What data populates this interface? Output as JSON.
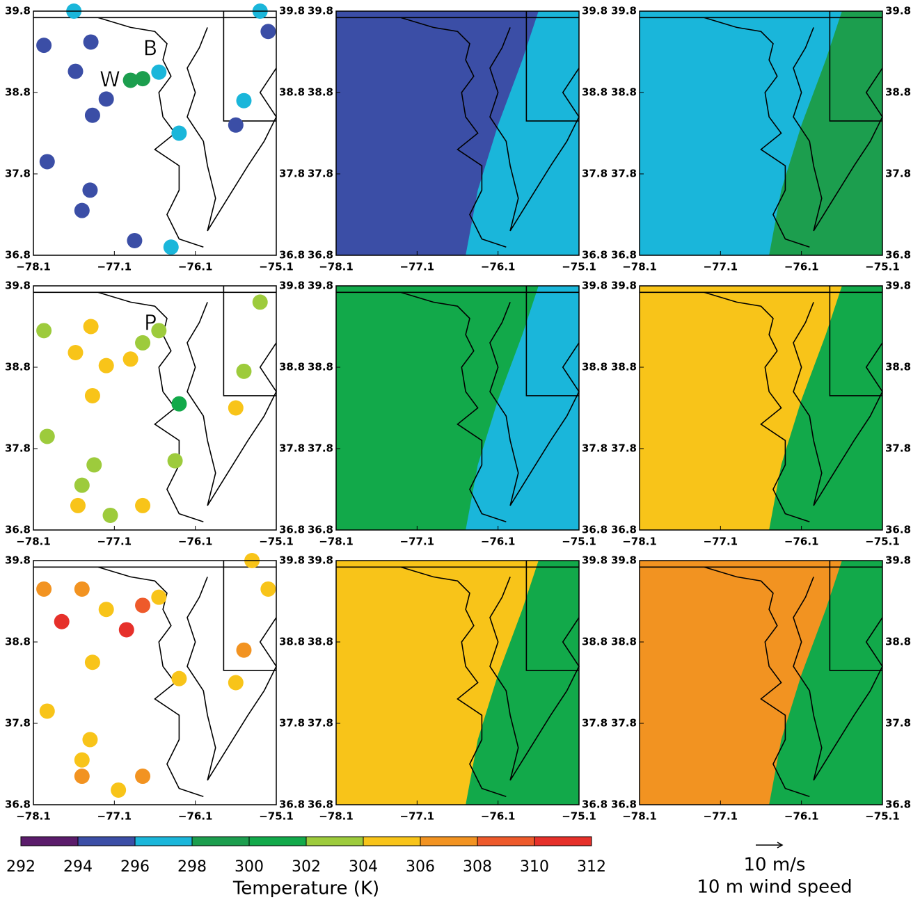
{
  "panels": [
    {
      "kind": "obs",
      "labels": [
        "W",
        "B"
      ],
      "stations": [
        [
          -77.97,
          39.38,
          295
        ],
        [
          -77.39,
          39.42,
          295
        ],
        [
          -77.58,
          39.06,
          295
        ],
        [
          -77.2,
          38.72,
          295
        ],
        [
          -77.37,
          38.52,
          295
        ],
        [
          -77.93,
          37.95,
          295
        ],
        [
          -77.4,
          37.6,
          295
        ],
        [
          -77.5,
          37.35,
          295
        ],
        [
          -76.75,
          38.97,
          299
        ],
        [
          -76.9,
          38.95,
          299
        ],
        [
          -76.55,
          39.05,
          297
        ],
        [
          -75.5,
          38.7,
          297
        ],
        [
          -75.6,
          38.4,
          295
        ],
        [
          -76.3,
          38.3,
          297
        ],
        [
          -76.85,
          36.98,
          295
        ],
        [
          -76.4,
          36.9,
          297
        ],
        [
          -75.2,
          39.55,
          295
        ],
        [
          -75.3,
          39.8,
          297
        ],
        [
          -77.6,
          39.8,
          297
        ]
      ]
    },
    {
      "kind": "model",
      "west": 295,
      "east": 297
    },
    {
      "kind": "model",
      "west": 297,
      "east": 299
    },
    {
      "kind": "obs",
      "labels": [
        "P"
      ],
      "stations": [
        [
          -77.97,
          39.25,
          303
        ],
        [
          -77.39,
          39.3,
          305
        ],
        [
          -77.58,
          38.98,
          305
        ],
        [
          -77.2,
          38.82,
          305
        ],
        [
          -77.37,
          38.45,
          305
        ],
        [
          -77.93,
          37.95,
          303
        ],
        [
          -77.35,
          37.6,
          303
        ],
        [
          -77.5,
          37.35,
          303
        ],
        [
          -76.75,
          39.1,
          303
        ],
        [
          -76.9,
          38.9,
          305
        ],
        [
          -76.55,
          39.25,
          303
        ],
        [
          -75.5,
          38.75,
          303
        ],
        [
          -75.6,
          38.3,
          305
        ],
        [
          -76.3,
          38.35,
          301
        ],
        [
          -77.15,
          36.98,
          303
        ],
        [
          -76.75,
          37.1,
          305
        ],
        [
          -75.3,
          39.6,
          303
        ],
        [
          -76.35,
          37.65,
          303
        ],
        [
          -77.55,
          37.1,
          305
        ]
      ]
    },
    {
      "kind": "model",
      "west": 301,
      "east": 297
    },
    {
      "kind": "model",
      "west": 305,
      "east": 301
    },
    {
      "kind": "obs",
      "labels": [],
      "stations": [
        [
          -77.97,
          39.45,
          307
        ],
        [
          -77.5,
          39.45,
          307
        ],
        [
          -77.75,
          39.05,
          311
        ],
        [
          -77.2,
          39.2,
          305
        ],
        [
          -77.37,
          38.55,
          305
        ],
        [
          -77.93,
          37.95,
          305
        ],
        [
          -77.4,
          37.6,
          305
        ],
        [
          -77.5,
          37.35,
          305
        ],
        [
          -76.75,
          39.25,
          309
        ],
        [
          -76.95,
          38.95,
          311
        ],
        [
          -76.55,
          39.35,
          305
        ],
        [
          -75.5,
          38.7,
          307
        ],
        [
          -75.6,
          38.3,
          305
        ],
        [
          -76.3,
          38.35,
          305
        ],
        [
          -77.05,
          36.98,
          305
        ],
        [
          -76.75,
          37.15,
          307
        ],
        [
          -75.2,
          39.45,
          305
        ],
        [
          -75.4,
          39.8,
          305
        ],
        [
          -77.5,
          37.15,
          307
        ]
      ]
    },
    {
      "kind": "model",
      "west": 305,
      "east": 301
    },
    {
      "kind": "model",
      "west": 307,
      "east": 301
    }
  ],
  "xticks": [
    {
      "value": -78.1,
      "label": "−78.1"
    },
    {
      "value": -77.1,
      "label": "−77.1"
    },
    {
      "value": -76.1,
      "label": "−76.1"
    },
    {
      "value": -75.1,
      "label": "−75.1"
    }
  ],
  "yticks": [
    36.8,
    37.8,
    38.8,
    39.8
  ],
  "xlim": [
    -78.1,
    -75.1
  ],
  "ylim": [
    36.8,
    39.8
  ],
  "colorbar": {
    "ticks": [
      292,
      294,
      296,
      298,
      300,
      302,
      304,
      306,
      308,
      310,
      312
    ],
    "colors": [
      "#5b1c6b",
      "#3b4ea6",
      "#1ab6da",
      "#1c9e4e",
      "#12a94a",
      "#9dcb3c",
      "#f8c419",
      "#f29321",
      "#ee5a2b",
      "#e6302a"
    ],
    "label": "Temperature (K)"
  },
  "wind_legend": {
    "speed": "10 m/s",
    "label": "10 m wind speed"
  }
}
